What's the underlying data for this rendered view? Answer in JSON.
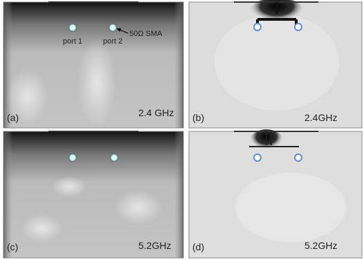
{
  "panels": [
    {
      "label": "(a)",
      "frequency": "2.4 GHz",
      "annotations": [
        "port 1",
        "port 2",
        "50Ω SMA"
      ]
    },
    {
      "label": "(b)",
      "frequency": "2.4GHz"
    },
    {
      "label": "(c)",
      "frequency": "5.2GHz"
    },
    {
      "label": "(d)",
      "frequency": "5.2GHz"
    }
  ]
}
